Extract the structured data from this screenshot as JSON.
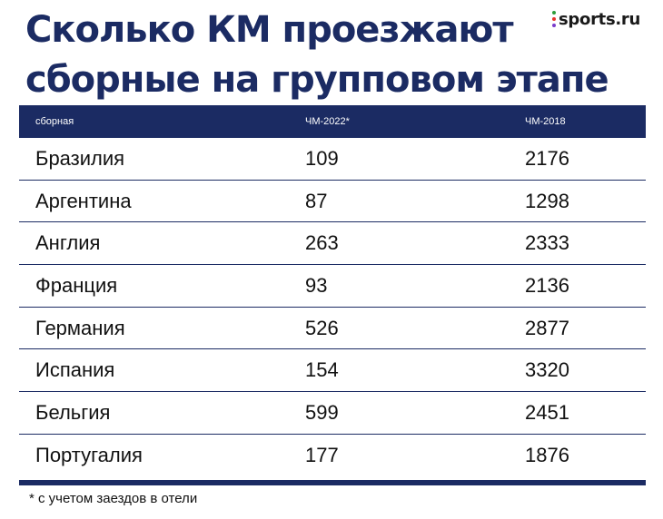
{
  "title": {
    "line1": "Сколько КМ проезжают",
    "line2": "сборные на групповом этапе"
  },
  "logo": {
    "text": "sports.ru",
    "dot_colors": [
      "#2d9d3a",
      "#e8332b",
      "#7a3ccb"
    ]
  },
  "colors": {
    "header_bg": "#1b2b63",
    "title": "#1b2b63"
  },
  "table": {
    "headers": [
      "сборная",
      "ЧМ-2022*",
      "ЧМ-2018"
    ],
    "rows": [
      {
        "team": "Бразилия",
        "wc2022": "109",
        "wc2018": "2176"
      },
      {
        "team": "Аргентина",
        "wc2022": "87",
        "wc2018": "1298"
      },
      {
        "team": "Англия",
        "wc2022": "263",
        "wc2018": "2333"
      },
      {
        "team": "Франция",
        "wc2022": "93",
        "wc2018": "2136"
      },
      {
        "team": "Германия",
        "wc2022": "526",
        "wc2018": "2877"
      },
      {
        "team": "Испания",
        "wc2022": "154",
        "wc2018": "3320"
      },
      {
        "team": "Бельгия",
        "wc2022": "599",
        "wc2018": "2451"
      },
      {
        "team": "Португалия",
        "wc2022": "177",
        "wc2018": "1876"
      }
    ]
  },
  "footnote": "* с учетом заездов в отели"
}
